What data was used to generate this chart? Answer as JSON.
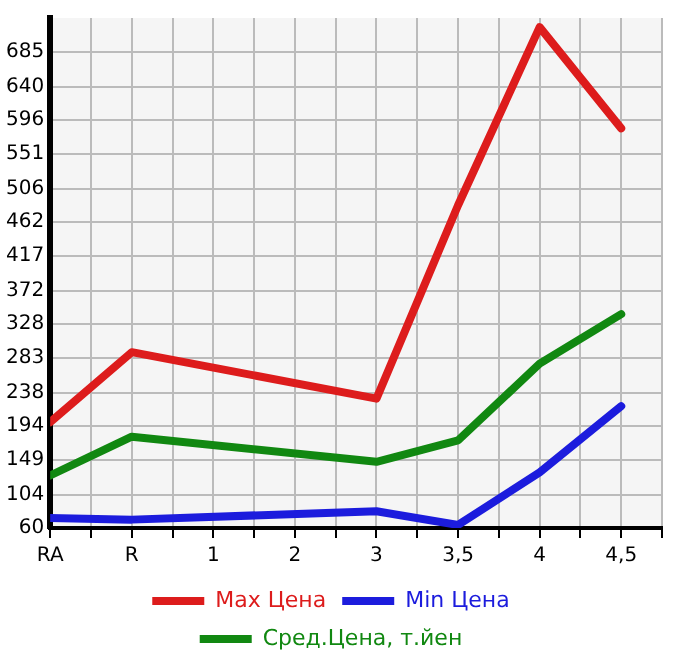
{
  "chart_data": {
    "type": "line",
    "categories": [
      "RA",
      "R",
      "1",
      "2",
      "3",
      "3,5",
      "4",
      "4,5"
    ],
    "series": [
      {
        "name": "Max Цена",
        "color": "#dd1c1c",
        "values": [
          199,
          291,
          null,
          null,
          230,
          484,
          718,
          585
        ]
      },
      {
        "name": "Min Цена",
        "color": "#1c1cdd",
        "values": [
          73,
          71,
          null,
          null,
          82,
          64,
          133,
          220
        ]
      },
      {
        "name": "Сред.Цена, т.йен",
        "color": "#118811",
        "values": [
          129,
          180,
          null,
          null,
          147,
          175,
          276,
          341
        ]
      }
    ],
    "ylim": [
      60,
      730
    ],
    "yticks": [
      60,
      104,
      149,
      194,
      238,
      283,
      328,
      372,
      417,
      462,
      506,
      551,
      596,
      640,
      685
    ],
    "grid": true,
    "legend": "bottom",
    "marker": "none",
    "line_style": "solid"
  }
}
